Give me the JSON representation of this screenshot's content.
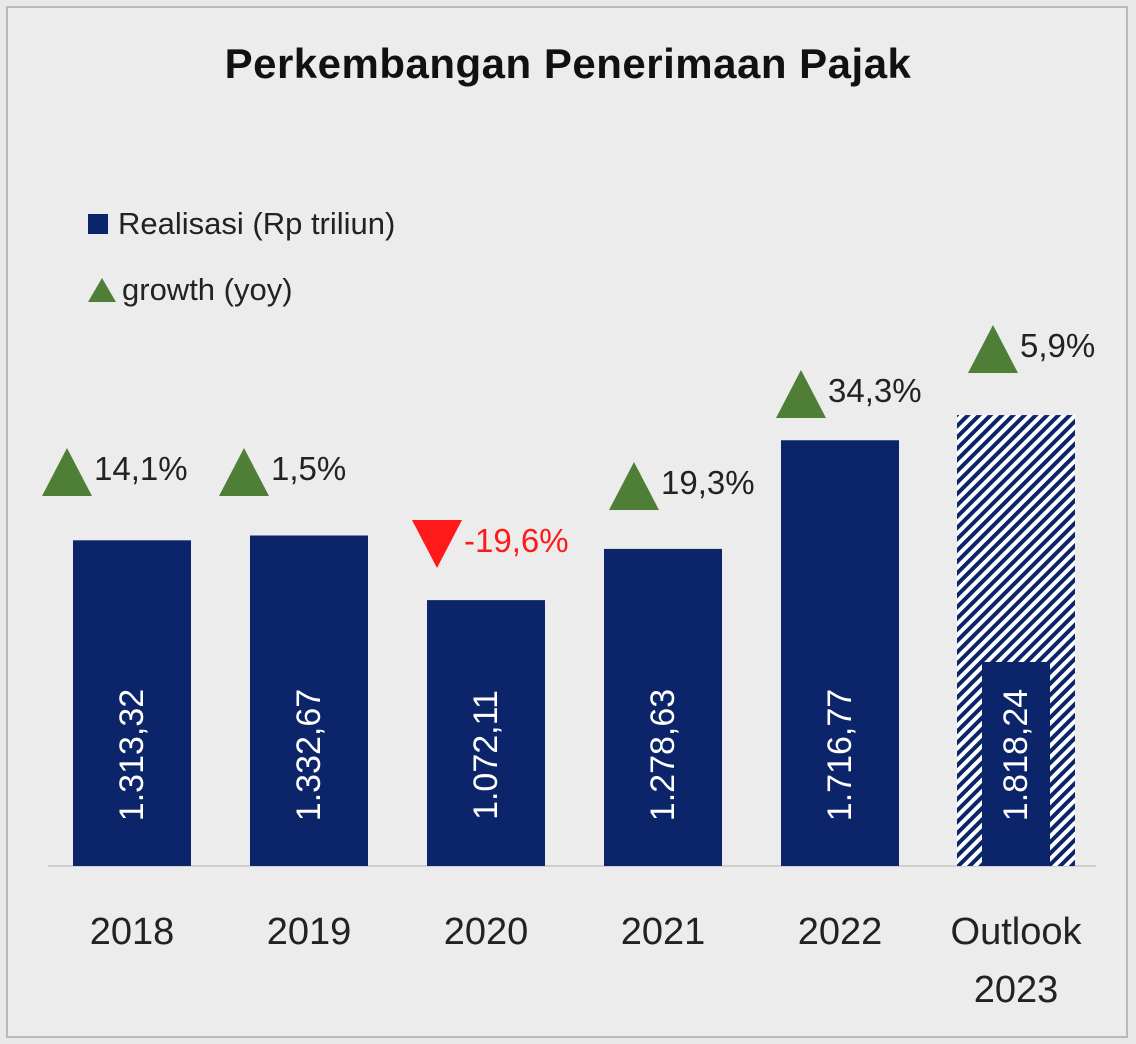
{
  "title": "Perkembangan Penerimaan Pajak",
  "legend": {
    "realisasi": "Realisasi (Rp triliun)",
    "growth": "growth (yoy)"
  },
  "colors": {
    "bar": "#0c2469",
    "up": "#4f7f37",
    "down": "#ff1a1a",
    "hatch_bg": "#ffffff"
  },
  "chart_data": {
    "type": "bar",
    "title": "Perkembangan Penerimaan Pajak",
    "categories": [
      "2018",
      "2019",
      "2020",
      "2021",
      "2022",
      "Outlook\n2023"
    ],
    "series": [
      {
        "name": "Realisasi (Rp triliun)",
        "values": [
          1313.32,
          1332.67,
          1072.11,
          1278.63,
          1716.77,
          1818.24
        ]
      },
      {
        "name": "growth (yoy)",
        "values": [
          14.1,
          1.5,
          -19.6,
          19.3,
          34.3,
          5.9
        ]
      }
    ],
    "value_labels": [
      "1.313,32",
      "1.332,67",
      "1.072,11",
      "1.278,63",
      "1.716,77",
      "1.818,24"
    ],
    "growth_labels": [
      "14,1%",
      "1,5%",
      "-19,6%",
      "19,3%",
      "34,3%",
      "5,9%"
    ],
    "projected": [
      false,
      false,
      false,
      false,
      false,
      true
    ],
    "ylim": [
      0,
      2000
    ]
  }
}
